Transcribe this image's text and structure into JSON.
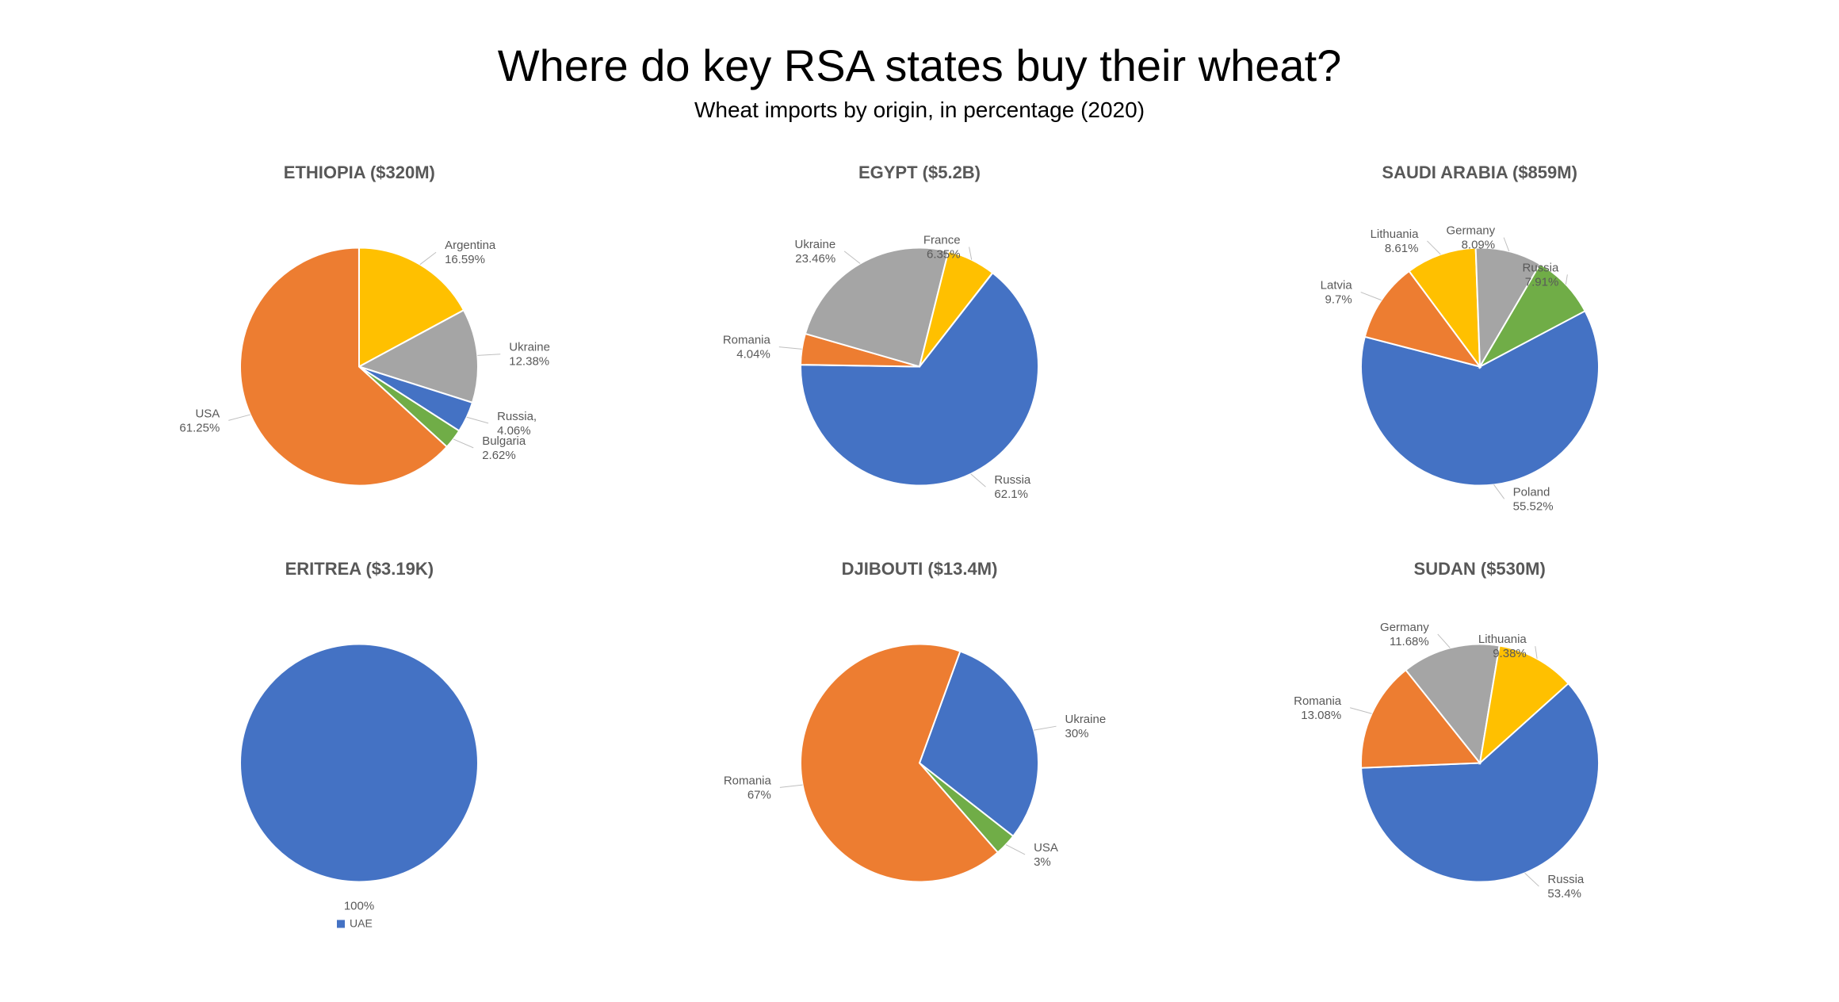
{
  "title": "Where do key RSA states buy their wheat?",
  "subtitle": "Wheat imports by origin, in percentage (2020)",
  "background_color": "#ffffff",
  "title_fontsize": 56,
  "subtitle_fontsize": 28,
  "chart_title_fontsize": 22,
  "label_fontsize": 15,
  "label_color": "#595959",
  "pie_radius": 150,
  "charts": [
    {
      "id": "ethiopia",
      "title": "ETHIOPIA ($320M)",
      "start_angle": -90,
      "slices": [
        {
          "label": "Argentina",
          "value_text": "16.59%",
          "value": 17.12,
          "color": "#ffc000",
          "label_pos": "right"
        },
        {
          "label": "Ukraine",
          "value_text": "12.38%",
          "value": 12.77,
          "color": "#a5a5a5",
          "label_pos": "right"
        },
        {
          "label": "Russia,",
          "value_text": "4.06%",
          "value": 4.19,
          "color": "#4472c4",
          "label_pos": "right"
        },
        {
          "label": "Bulgaria",
          "value_text": "2.62%",
          "value": 2.7,
          "color": "#70ad47",
          "label_pos": "right"
        },
        {
          "label": "USA",
          "value_text": "61.25%",
          "value": 63.21,
          "color": "#ed7d31",
          "label_pos": "left"
        }
      ]
    },
    {
      "id": "egypt",
      "title": "EGYPT ($5.2B)",
      "start_angle": -52,
      "slices": [
        {
          "label": "Russia",
          "value_text": "62.1%",
          "value": 64.7,
          "color": "#4472c4",
          "label_pos": "right"
        },
        {
          "label": "Romania",
          "value_text": "4.04%",
          "value": 4.21,
          "color": "#ed7d31",
          "label_pos": "left"
        },
        {
          "label": "Ukraine",
          "value_text": "23.46%",
          "value": 24.44,
          "color": "#a5a5a5",
          "label_pos": "left"
        },
        {
          "label": "France",
          "value_text": "6.35%",
          "value": 6.62,
          "color": "#ffc000",
          "label_pos": "left"
        }
      ]
    },
    {
      "id": "saudi",
      "title": "SAUDI ARABIA ($859M)",
      "start_angle": -28,
      "slices": [
        {
          "label": "Poland",
          "value_text": "55.52%",
          "value": 61.82,
          "color": "#4472c4",
          "label_pos": "right"
        },
        {
          "label": "Latvia",
          "value_text": "9.7%",
          "value": 10.8,
          "color": "#ed7d31",
          "label_pos": "left"
        },
        {
          "label": "Lithuania",
          "value_text": "8.61%",
          "value": 9.59,
          "color": "#ffc000",
          "label_pos": "left"
        },
        {
          "label": "Germany",
          "value_text": "8.09%",
          "value": 9.01,
          "color": "#a5a5a5",
          "label_pos": "left"
        },
        {
          "label": "Russia",
          "value_text": "7.91%",
          "value": 8.81,
          "color": "#70ad47",
          "label_pos": "left"
        }
      ]
    },
    {
      "id": "eritrea",
      "title": "ERITREA ($3.19K)",
      "start_angle": -90,
      "slices": [
        {
          "label": "",
          "value_text": "100%",
          "value": 100,
          "color": "#4472c4",
          "label_pos": "bottom"
        }
      ],
      "legend_label": "UAE",
      "legend_color": "#4472c4"
    },
    {
      "id": "djibouti",
      "title": "DJIBOUTI ($13.4M)",
      "start_angle": -70,
      "slices": [
        {
          "label": "Ukraine",
          "value_text": "30%",
          "value": 30,
          "color": "#4472c4",
          "label_pos": "right"
        },
        {
          "label": "USA",
          "value_text": "3%",
          "value": 3,
          "color": "#70ad47",
          "label_pos": "right"
        },
        {
          "label": "Romania",
          "value_text": "67%",
          "value": 67,
          "color": "#ed7d31",
          "label_pos": "left"
        }
      ]
    },
    {
      "id": "sudan",
      "title": "SUDAN ($530M)",
      "start_angle": -42,
      "slices": [
        {
          "label": "Russia",
          "value_text": "53.4%",
          "value": 61.01,
          "color": "#4472c4",
          "label_pos": "right"
        },
        {
          "label": "Romania",
          "value_text": "13.08%",
          "value": 14.94,
          "color": "#ed7d31",
          "label_pos": "left"
        },
        {
          "label": "Germany",
          "value_text": "11.68%",
          "value": 13.34,
          "color": "#a5a5a5",
          "label_pos": "left"
        },
        {
          "label": "Lithuania",
          "value_text": "9.38%",
          "value": 10.72,
          "color": "#ffc000",
          "label_pos": "left"
        }
      ]
    }
  ]
}
